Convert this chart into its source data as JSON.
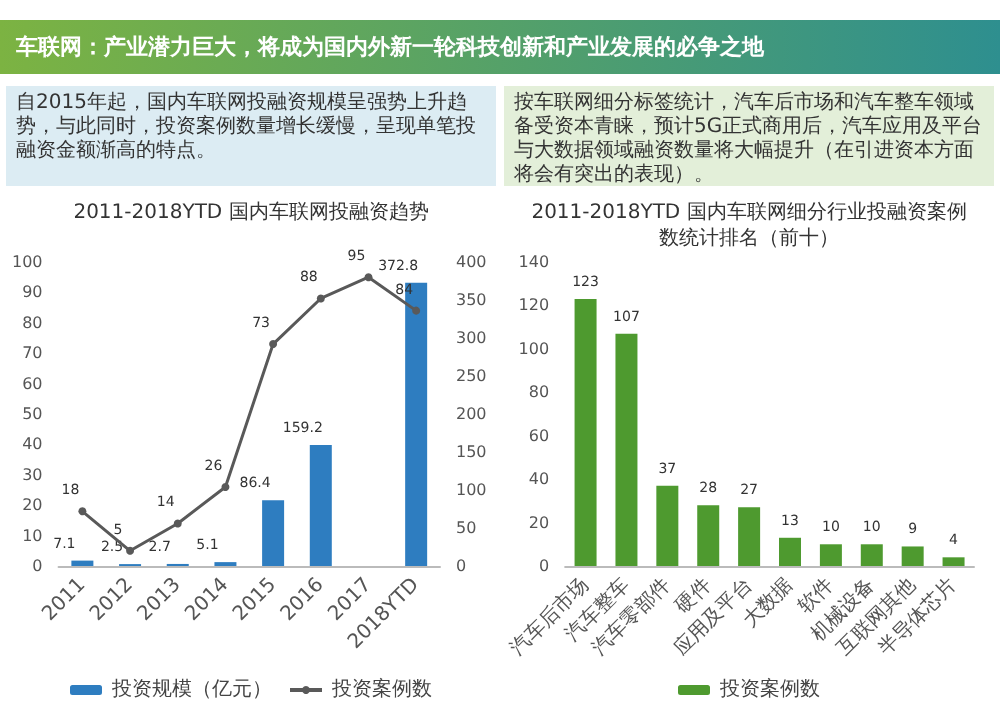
{
  "chart_data": [
    {
      "type": "bar",
      "title": "2011-2018YTD 国内车联网投融资趋势",
      "subtitle": "自2015年起，国内车联网投融资规模呈强势上升趋势，与此同时，投资案例数量增长缓慢，呈现单笔投融资金额渐高的特点。",
      "annotations": [
        "车联网：产业潜力巨大，将成为国内外新一轮科技创新和产业发展的必争之地"
      ],
      "categories": [
        "2011",
        "2012",
        "2013",
        "2014",
        "2015",
        "2016",
        "2017",
        "2018YTD"
      ],
      "series": [
        {
          "name": "投资规模（亿元）",
          "type": "bar",
          "axis": "y2",
          "color": "#2e7dc0",
          "values": [
            7.1,
            2.5,
            2.7,
            5.1,
            86.4,
            159.2,
            null,
            372.8
          ]
        },
        {
          "name": "投资案例数",
          "type": "line",
          "color": "#595959",
          "values": [
            18,
            5,
            14,
            26,
            73,
            88,
            95,
            84
          ]
        }
      ],
      "ylim": [
        0,
        100
      ],
      "yticks": [
        0,
        10,
        20,
        30,
        40,
        50,
        60,
        70,
        80,
        90,
        100
      ],
      "y2lim": [
        0,
        400
      ],
      "y2ticks": [
        0,
        50,
        100,
        150,
        200,
        250,
        300,
        350,
        400
      ],
      "data_labels": true,
      "legend": "bottom",
      "marker": "circle",
      "line_style": "solid"
    },
    {
      "type": "bar",
      "title": "2011-2018YTD 国内车联网细分行业投融资案例数统计排名（前十）",
      "subtitle": "按车联网细分标签统计，汽车后市场和汽车整车领域备受资本青睐，预计5G正式商用后，汽车应用及平台与大数据领域融资数量将大幅提升（在引进资本方面将会有突出的表现）。",
      "categories": [
        "汽车后市场",
        "汽车整车",
        "汽车零部件",
        "硬件",
        "应用及平台",
        "大数据",
        "软件",
        "机械设备",
        "互联网其他",
        "半导体芯片"
      ],
      "series": [
        {
          "name": "投资案例数",
          "color": "#4e9a2f",
          "values": [
            123,
            107,
            37,
            28,
            27,
            13,
            10,
            10,
            9,
            4
          ]
        }
      ],
      "ylim": [
        0,
        140
      ],
      "yticks": [
        0,
        20,
        40,
        60,
        80,
        100,
        120,
        140
      ],
      "data_labels": true,
      "legend": "bottom"
    }
  ]
}
